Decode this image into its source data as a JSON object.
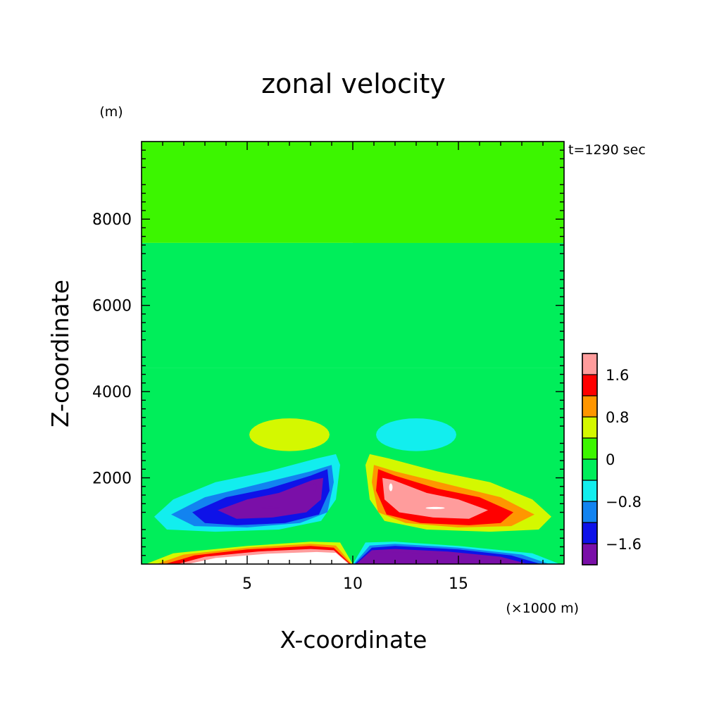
{
  "chart_data": {
    "type": "contour",
    "title": "zonal velocity",
    "time_label": "t=1290 sec",
    "xlabel": "X-coordinate",
    "ylabel": "Z-coordinate",
    "x_unit": "(×1000 m)",
    "y_unit": "(m)",
    "xlim": [
      0,
      20
    ],
    "ylim": [
      0,
      9800
    ],
    "x_ticks": [
      5,
      10,
      15
    ],
    "y_ticks": [
      2000,
      4000,
      6000,
      8000
    ],
    "colorbar": {
      "levels": [
        -2.0,
        -1.6,
        -1.2,
        -0.8,
        -0.4,
        0,
        0.4,
        0.8,
        1.2,
        1.6,
        2.0
      ],
      "labeled_levels": [
        "1.6",
        "0.8",
        "0",
        "−0.8",
        "−1.6"
      ],
      "colors_low_to_high": [
        "#7a0fa8",
        "#0e12e8",
        "#1283f0",
        "#12eeee",
        "#00ee5a",
        "#3cf600",
        "#d4f800",
        "#ff9600",
        "#ff0000",
        "#ff9c9c"
      ],
      "above_max_color": "#ffffff"
    },
    "background_bands": [
      {
        "z_range": [
          0,
          4550
        ],
        "value_range": [
          -0.4,
          0
        ],
        "color": "#00ee5a"
      },
      {
        "z_range": [
          4550,
          7450
        ],
        "value_range": [
          -0.4,
          0
        ],
        "color": "#00ee5a"
      },
      {
        "z_range": [
          7450,
          9800
        ],
        "value_range": [
          0,
          0.4
        ],
        "color": "#3cf600"
      }
    ],
    "features": [
      {
        "name": "lower-left negative lobe",
        "x_center": 6.5,
        "z_center": 1300,
        "min_value": -2.0
      },
      {
        "name": "lower-right positive lobe",
        "x_center": 13.5,
        "z_center": 1300,
        "max_value": 2.0
      },
      {
        "name": "upper-left weak positive lobe",
        "x_center": 7.0,
        "z_center": 3000,
        "value": 0.4
      },
      {
        "name": "upper-right weak negative lobe",
        "x_center": 13.0,
        "z_center": 3000,
        "value": -0.4
      },
      {
        "name": "surface left positive layer",
        "x_center": 6.0,
        "z_center": 150,
        "max_value": 2.0
      },
      {
        "name": "surface right negative layer",
        "x_center": 14.0,
        "z_center": 150,
        "min_value": -2.0
      }
    ]
  }
}
